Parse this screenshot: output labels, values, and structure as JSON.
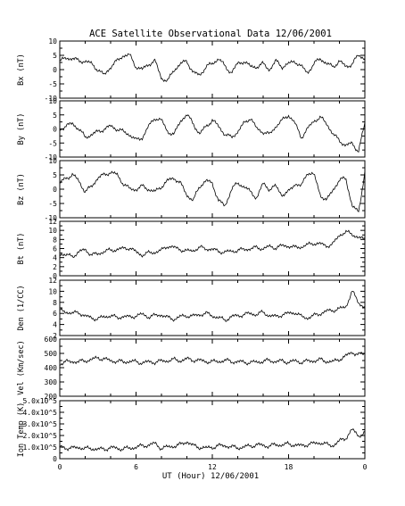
{
  "chart_data": {
    "type": "line",
    "title": "ACE Satellite Observational Data   12/06/2001",
    "xlabel": "UT (Hour)  12/06/2001",
    "xticks": [
      "0",
      "6",
      "12",
      "18",
      "0"
    ],
    "xlim": [
      0,
      24
    ],
    "panels": [
      {
        "ylabel": "Bx (nT)",
        "ylim": [
          -10,
          10
        ],
        "yticks": [
          "-10",
          "-5",
          "0",
          "5",
          "10"
        ],
        "x": [
          0,
          0.5,
          1,
          1.5,
          2,
          2.5,
          3,
          3.5,
          4,
          4.5,
          5,
          5.5,
          6,
          6.5,
          7,
          7.5,
          8,
          8.5,
          9,
          9.5,
          10,
          10.5,
          11,
          11.5,
          12,
          12.5,
          13,
          13.5,
          14,
          14.5,
          15,
          15.5,
          16,
          16.5,
          17,
          17.5,
          18,
          18.5,
          19,
          19.5,
          20,
          20.5,
          21,
          21.5,
          22,
          22.5,
          23,
          23.5,
          24
        ],
        "values": [
          3,
          4,
          4,
          3,
          3,
          2,
          0,
          -2,
          1,
          3,
          5,
          5,
          1,
          0,
          2,
          3,
          -3,
          -4,
          0,
          2,
          3,
          -1,
          -2,
          1,
          2,
          4,
          1,
          -1,
          2,
          3,
          1,
          1,
          2,
          0,
          3,
          1,
          2,
          3,
          1,
          -1,
          2,
          4,
          2,
          1,
          3,
          1,
          2,
          5,
          4
        ]
      },
      {
        "ylabel": "By (nT)",
        "ylim": [
          -10,
          10
        ],
        "yticks": [
          "-10",
          "-5",
          "0",
          "5",
          "10"
        ],
        "x": [
          0,
          0.5,
          1,
          1.5,
          2,
          2.5,
          3,
          3.5,
          4,
          4.5,
          5,
          5.5,
          6,
          6.5,
          7,
          7.5,
          8,
          8.5,
          9,
          9.5,
          10,
          10.5,
          11,
          11.5,
          12,
          12.5,
          13,
          13.5,
          14,
          14.5,
          15,
          15.5,
          16,
          16.5,
          17,
          17.5,
          18,
          18.5,
          19,
          19.5,
          20,
          20.5,
          21,
          21.5,
          22,
          22.5,
          23,
          23.5,
          24
        ],
        "values": [
          0,
          1,
          2,
          0,
          -3,
          -2,
          -1,
          0,
          1,
          0,
          -1,
          -2,
          -4,
          -3,
          1,
          4,
          3,
          -1,
          -2,
          3,
          5,
          2,
          -2,
          1,
          3,
          1,
          -2,
          -3,
          -1,
          2,
          4,
          0,
          -1,
          -2,
          1,
          3,
          5,
          2,
          -3,
          0,
          3,
          4,
          2,
          -2,
          -4,
          -6,
          -5,
          -8,
          2
        ]
      },
      {
        "ylabel": "Bz (nT)",
        "ylim": [
          -10,
          10
        ],
        "yticks": [
          "-10",
          "-5",
          "0",
          "5",
          "10"
        ],
        "x": [
          0,
          0.5,
          1,
          1.5,
          2,
          2.5,
          3,
          3.5,
          4,
          4.5,
          5,
          5.5,
          6,
          6.5,
          7,
          7.5,
          8,
          8.5,
          9,
          9.5,
          10,
          10.5,
          11,
          11.5,
          12,
          12.5,
          13,
          13.5,
          14,
          14.5,
          15,
          15.5,
          16,
          16.5,
          17,
          17.5,
          18,
          18.5,
          19,
          19.5,
          20,
          20.5,
          21,
          21.5,
          22,
          22.5,
          23,
          23.5,
          24
        ],
        "values": [
          2,
          4,
          5,
          3,
          -1,
          1,
          4,
          5,
          6,
          5,
          2,
          0,
          0,
          1,
          0,
          -1,
          1,
          3,
          4,
          2,
          -2,
          -4,
          1,
          3,
          2,
          -4,
          -6,
          0,
          2,
          1,
          -1,
          -3,
          2,
          0,
          1,
          -2,
          -1,
          2,
          1,
          6,
          5,
          -2,
          -4,
          0,
          3,
          4,
          -6,
          -8,
          6
        ]
      },
      {
        "ylabel": "Bt (nT)",
        "ylim": [
          0,
          12
        ],
        "yticks": [
          "0",
          "2",
          "4",
          "6",
          "8",
          "10",
          "12"
        ],
        "x": [
          0,
          0.5,
          1,
          1.5,
          2,
          2.5,
          3,
          3.5,
          4,
          4.5,
          5,
          5.5,
          6,
          6.5,
          7,
          7.5,
          8,
          8.5,
          9,
          9.5,
          10,
          10.5,
          11,
          11.5,
          12,
          12.5,
          13,
          13.5,
          14,
          14.5,
          15,
          15.5,
          16,
          16.5,
          17,
          17.5,
          18,
          18.5,
          19,
          19.5,
          20,
          20.5,
          21,
          21.5,
          22,
          22.5,
          23,
          23.5,
          24
        ],
        "values": [
          5,
          4.5,
          4.3,
          5.2,
          5.8,
          4.6,
          4.8,
          5.4,
          5.6,
          5.8,
          6,
          6.2,
          5.2,
          4.6,
          5,
          5.2,
          5.6,
          6.6,
          6.2,
          5.8,
          5.4,
          5.6,
          6.2,
          6,
          5.8,
          5.4,
          5.2,
          5.4,
          5.6,
          5.8,
          6,
          6.2,
          6,
          6.4,
          6.2,
          6.6,
          6.6,
          6.2,
          6.4,
          6.8,
          7.2,
          7,
          6.6,
          7,
          9,
          9.6,
          9.2,
          8.4,
          8
        ]
      },
      {
        "ylabel": "Den (1/CC)",
        "ylim": [
          2,
          12
        ],
        "yticks": [
          "2",
          "4",
          "6",
          "8",
          "10",
          "12"
        ],
        "x": [
          0,
          0.5,
          1,
          1.5,
          2,
          2.5,
          3,
          3.5,
          4,
          4.5,
          5,
          5.5,
          6,
          6.5,
          7,
          7.5,
          8,
          8.5,
          9,
          9.5,
          10,
          10.5,
          11,
          11.5,
          12,
          12.5,
          13,
          13.5,
          14,
          14.5,
          15,
          15.5,
          16,
          16.5,
          17,
          17.5,
          18,
          18.5,
          19,
          19.5,
          20,
          20.5,
          21,
          21.5,
          22,
          22.5,
          23,
          23.5,
          24
        ],
        "values": [
          6.5,
          6.3,
          6,
          6.2,
          5.5,
          5.2,
          5,
          5.4,
          5.6,
          5.2,
          5.5,
          5.3,
          5.6,
          5.8,
          5.4,
          5.6,
          5.8,
          5.2,
          5,
          5.4,
          5.6,
          5.5,
          5.8,
          6,
          5.6,
          5.2,
          4.8,
          5.4,
          5.6,
          5.8,
          6,
          5.8,
          6.2,
          5.6,
          5.4,
          5.8,
          6,
          6.2,
          5.4,
          5.2,
          5.6,
          6,
          6.4,
          6.6,
          6.8,
          7.2,
          10,
          8,
          7
        ]
      },
      {
        "ylabel": "Vel (Km/sec)",
        "ylim": [
          200,
          600
        ],
        "yticks": [
          "200",
          "300",
          "400",
          "500",
          "600"
        ],
        "x": [
          0,
          0.5,
          1,
          1.5,
          2,
          2.5,
          3,
          3.5,
          4,
          4.5,
          5,
          5.5,
          6,
          6.5,
          7,
          7.5,
          8,
          8.5,
          9,
          9.5,
          10,
          10.5,
          11,
          11.5,
          12,
          12.5,
          13,
          13.5,
          14,
          14.5,
          15,
          15.5,
          16,
          16.5,
          17,
          17.5,
          18,
          18.5,
          19,
          19.5,
          20,
          20.5,
          21,
          21.5,
          22,
          22.5,
          23,
          23.5,
          24
        ],
        "values": [
          430,
          440,
          445,
          440,
          450,
          455,
          470,
          460,
          450,
          445,
          440,
          445,
          440,
          435,
          440,
          440,
          445,
          450,
          455,
          450,
          460,
          455,
          450,
          445,
          440,
          445,
          450,
          445,
          440,
          440,
          435,
          440,
          445,
          450,
          445,
          445,
          440,
          445,
          440,
          445,
          450,
          455,
          445,
          440,
          460,
          480,
          510,
          490,
          500
        ]
      },
      {
        "ylabel": "Ion Temp (K)",
        "ylim": [
          0,
          500000
        ],
        "yticks": [
          "0",
          "1.0x10^5",
          "2.0x10^5",
          "3.0x10^5",
          "4.0x10^5",
          "5.0x10^5"
        ],
        "x": [
          0,
          0.5,
          1,
          1.5,
          2,
          2.5,
          3,
          3.5,
          4,
          4.5,
          5,
          5.5,
          6,
          6.5,
          7,
          7.5,
          8,
          8.5,
          9,
          9.5,
          10,
          10.5,
          11,
          11.5,
          12,
          12.5,
          13,
          13.5,
          14,
          14.5,
          15,
          15.5,
          16,
          16.5,
          17,
          17.5,
          18,
          18.5,
          19,
          19.5,
          20,
          20.5,
          21,
          21.5,
          22,
          22.5,
          23,
          23.5,
          24
        ],
        "values": [
          100000,
          95000,
          90000,
          100000,
          85000,
          90000,
          80000,
          85000,
          95000,
          90000,
          85000,
          90000,
          100000,
          110000,
          120000,
          130000,
          90000,
          100000,
          110000,
          120000,
          150000,
          110000,
          100000,
          90000,
          100000,
          110000,
          115000,
          100000,
          95000,
          100000,
          110000,
          120000,
          115000,
          110000,
          120000,
          120000,
          125000,
          120000,
          110000,
          125000,
          130000,
          140000,
          120000,
          115000,
          150000,
          180000,
          250000,
          200000,
          220000
        ]
      }
    ]
  }
}
